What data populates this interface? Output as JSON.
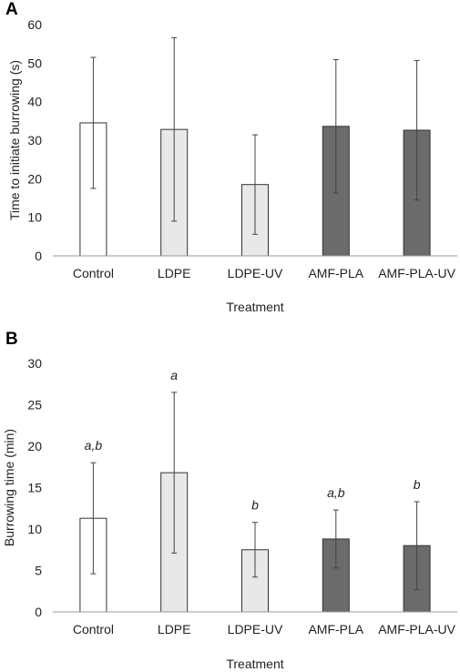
{
  "chart_data": [
    {
      "type": "bar",
      "panel": "A",
      "categories": [
        "Control",
        "LDPE",
        "LDPE-UV",
        "AMF-PLA",
        "AMF-PLA-UV"
      ],
      "values": [
        34.5,
        32.8,
        18.5,
        33.6,
        32.6
      ],
      "error": [
        17,
        23.8,
        12.9,
        17.3,
        18.1
      ],
      "fills": [
        "#ffffff",
        "#e8e8e8",
        "#e8e8e8",
        "#6b6b6b",
        "#6b6b6b"
      ],
      "xlabel": "Treatment",
      "ylabel": "Time to initiate burrowing (s)",
      "ylim": [
        0,
        60
      ],
      "yticks": [
        "0",
        "10",
        "20",
        "30",
        "40",
        "50",
        "60"
      ],
      "annotations": [
        "",
        "",
        "",
        "",
        ""
      ],
      "grid": false
    },
    {
      "type": "bar",
      "panel": "B",
      "categories": [
        "Control",
        "LDPE",
        "LDPE-UV",
        "AMF-PLA",
        "AMF-PLA-UV"
      ],
      "values": [
        11.3,
        16.8,
        7.5,
        8.8,
        8.0
      ],
      "error": [
        6.7,
        9.7,
        3.3,
        3.5,
        5.3
      ],
      "fills": [
        "#ffffff",
        "#e8e8e8",
        "#e8e8e8",
        "#6b6b6b",
        "#6b6b6b"
      ],
      "xlabel": "Treatment",
      "ylabel": "Burrowing time (min)",
      "ylim": [
        0,
        30
      ],
      "yticks": [
        "0",
        "5",
        "10",
        "15",
        "20",
        "25",
        "30"
      ],
      "annotations": [
        "a,b",
        "a",
        "b",
        "a,b",
        "b"
      ],
      "grid": false
    }
  ]
}
